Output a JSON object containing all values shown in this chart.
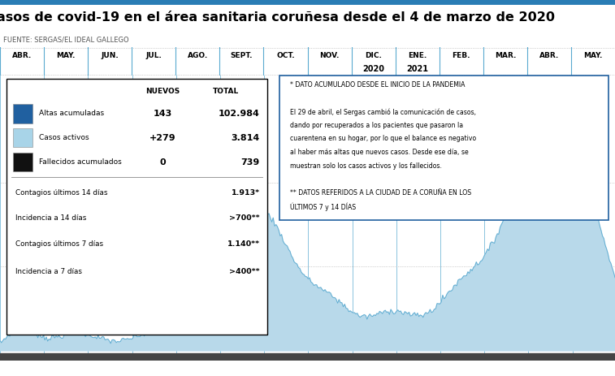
{
  "title": "asos de covid-19 en el área sanitaria coruñesa desde el 4 de marzo de 2020",
  "source": "FUENTE: SERGAS/EL IDEAL GALLEGO",
  "bg_color": "#ffffff",
  "header_line_color": "#2a7db5",
  "month_labels": [
    "ABR.",
    "MAY.",
    "JUN.",
    "JUL.",
    "AGO.",
    "SEPT.",
    "OCT.",
    "NOV.",
    "DIC.",
    "ENE.",
    "FEB.",
    "MAR.",
    "ABR.",
    "MAY."
  ],
  "year_label_dic": "2020",
  "year_label_ene": "2021",
  "table_data": [
    {
      "label": "Altas acumuladas",
      "color": "#2060a0",
      "nuevos": "143",
      "total": "102.984"
    },
    {
      "label": "Casos activos",
      "color": "#a8d4e8",
      "nuevos": "+279",
      "total": "3.814"
    },
    {
      "label": "Fallecidos acumulados",
      "color": "#111111",
      "nuevos": "0",
      "total": "739"
    },
    {
      "label": "Contagios últimos 14 días",
      "color": null,
      "nuevos": "",
      "total": "1.913*"
    },
    {
      "label": "Incidencia a 14 días",
      "color": null,
      "nuevos": "",
      "total": ">700**"
    },
    {
      "label": "Contagios últimos 7 días",
      "color": null,
      "nuevos": "",
      "total": "1.140**"
    },
    {
      "label": "Incidencia a 7 días",
      "color": null,
      "nuevos": "",
      "total": ">400**"
    }
  ],
  "note_lines": [
    "* DATO ACUMULADO DESDE EL INICIO DE LA PANDEMIA",
    "",
    "El 29 de abril, el Sergas cambió la comunicación de casos,",
    "dando por recuperados a los pacientes que pasaron la",
    "cuarentena en su hogar, por lo que el balance es negativo",
    "al haber más altas que nuevos casos. Desde ese día, se",
    "muestran solo los casos activos y los fallecidos.",
    "",
    "** DATOS REFERIDOS A LA CIUDAD DE A CORUÑA EN LOS",
    "ÚLTIMOS 7 y 14 DÍAS"
  ],
  "chart_fill_color": "#b8d9ea",
  "chart_line_color": "#5aaad0",
  "chart_bottom_color": "#444444",
  "vline_color": "#5aaad0",
  "grid_color": "#aaaaaa",
  "num_points": 440
}
